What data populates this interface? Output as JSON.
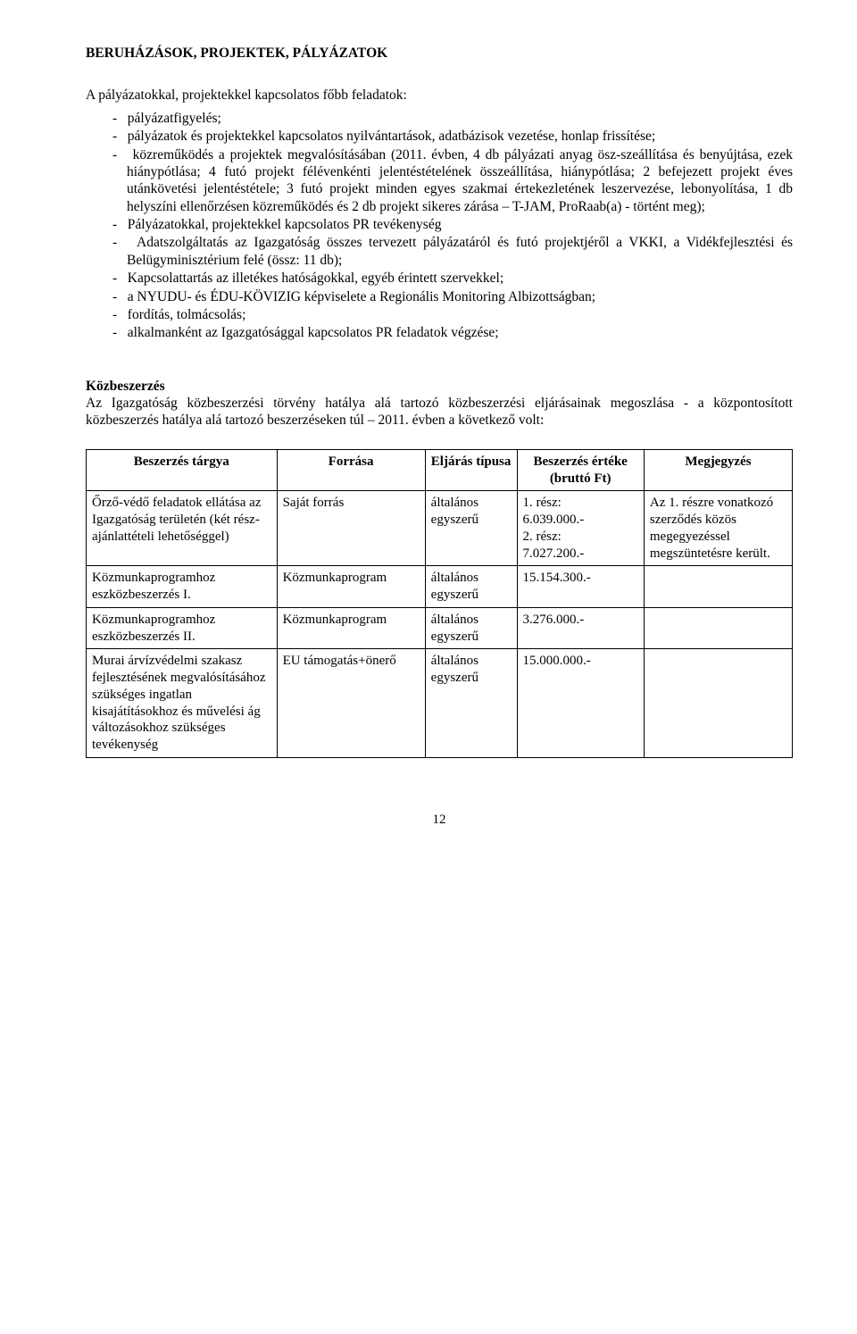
{
  "title": "BERUHÁZÁSOK, PROJEKTEK, PÁLYÁZATOK",
  "intro": "A pályázatokkal, projektekkel kapcsolatos főbb feladatok:",
  "bullets": [
    "pályázatfigyelés;",
    "pályázatok és projektekkel kapcsolatos nyilvántartások, adatbázisok vezetése, honlap frissítése;",
    "közreműködés a projektek megvalósításában (2011. évben, 4 db pályázati anyag ösz-szeállítása és benyújtása, ezek hiánypótlása; 4 futó projekt félévenkénti jelentéstételének összeállítása, hiánypótlása; 2 befejezett projekt éves utánkövetési jelentéstétele; 3 futó projekt minden egyes szakmai értekezletének leszervezése, lebonyolítása, 1 db helyszíni ellenőrzésen közreműködés és 2 db projekt sikeres zárása – T-JAM, ProRaab(a) - történt meg);",
    "Pályázatokkal, projektekkel kapcsolatos PR tevékenység",
    "Adatszolgáltatás az Igazgatóság összes tervezett pályázatáról és futó projektjéről a VKKI, a Vidékfejlesztési és Belügyminisztérium felé (össz: 11 db);",
    "Kapcsolattartás az illetékes hatóságokkal, egyéb érintett szervekkel;",
    "a NYUDU- és ÉDU-KÖVIZIG képviselete a Regionális Monitoring Albizottságban;",
    "fordítás, tolmácsolás;",
    "alkalmanként az Igazgatósággal kapcsolatos PR feladatok végzése;"
  ],
  "section_heading": "Közbeszerzés",
  "section_intro": "Az Igazgatóság közbeszerzési törvény hatálya alá tartozó közbeszerzési eljárásainak megoszlása - a központosított közbeszerzés hatálya alá tartozó beszerzéseken túl – 2011. évben a következő volt:",
  "table": {
    "headers": {
      "topic": "Beszerzés tárgya",
      "source": "Forrása",
      "type": "Eljárás típusa",
      "value": "Beszerzés értéke (bruttó Ft)",
      "note": "Megjegyzés"
    },
    "rows": [
      {
        "topic": "Őrző-védő feladatok ellátása az Igazgatóság területén (két rész-ajánlattételi lehetőséggel)",
        "source": "Saját forrás",
        "type": "általános egyszerű",
        "value": "1.     rész:\n6.039.000.-\n2.     rész:\n7.027.200.-",
        "note": "Az 1. részre vonatkozó szerződés közös megegyezéssel megszüntetésre került."
      },
      {
        "topic": "Közmunkaprogramhoz eszközbeszerzés I.",
        "source": "Közmunkaprogram",
        "type": "általános egyszerű",
        "value": "15.154.300.-",
        "note": ""
      },
      {
        "topic": "Közmunkaprogramhoz eszközbeszerzés II.",
        "source": "Közmunkaprogram",
        "type": "általános egyszerű",
        "value": "3.276.000.-",
        "note": ""
      },
      {
        "topic": "Murai árvízvédelmi szakasz fejlesztésének megvalósításához szükséges ingatlan kisajátításokhoz és művelési ág változásokhoz szükséges tevékenység",
        "source": "EU támogatás+önerő",
        "type": "általános egyszerű",
        "value": "15.000.000.-",
        "note": ""
      }
    ]
  },
  "page_number": "12"
}
